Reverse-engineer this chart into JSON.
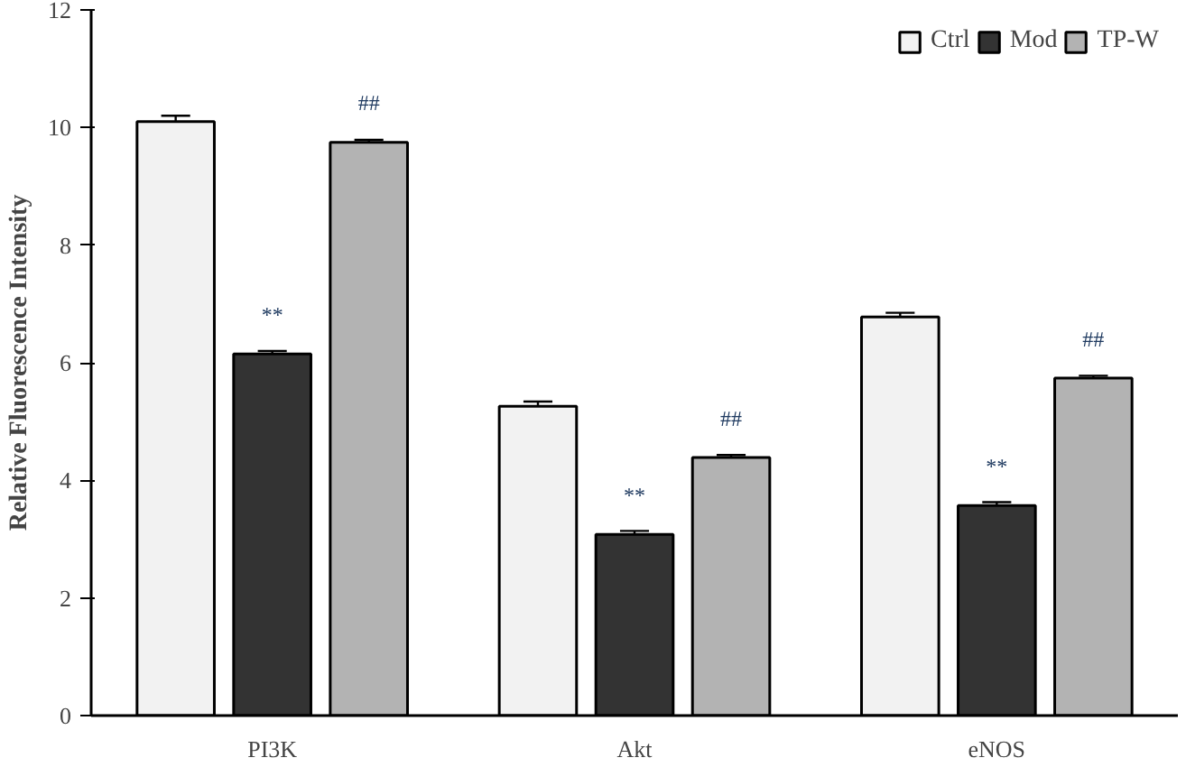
{
  "chart_data": {
    "type": "bar",
    "ylabel": "Relative Fluorescence Intensity",
    "categories": [
      "PI3K",
      "Akt",
      "eNOS"
    ],
    "series": [
      {
        "name": "Ctrl",
        "color": "#f2f2f2",
        "values": [
          10.1,
          5.26,
          6.78
        ],
        "errors": [
          0.1,
          0.08,
          0.07
        ]
      },
      {
        "name": "Mod",
        "color": "#333333",
        "values": [
          6.15,
          3.08,
          3.57
        ],
        "errors": [
          0.05,
          0.06,
          0.06
        ]
      },
      {
        "name": "TP-W",
        "color": "#b3b3b3",
        "values": [
          9.75,
          4.39,
          5.74
        ],
        "errors": [
          0.04,
          0.04,
          0.04
        ]
      }
    ],
    "ylim": [
      0,
      12
    ],
    "yticks": [
      0,
      2,
      4,
      6,
      8,
      10,
      12
    ],
    "grid": false,
    "legend": "top right",
    "annotations": [
      "**",
      "**",
      "**",
      "##",
      "##",
      "##"
    ]
  }
}
